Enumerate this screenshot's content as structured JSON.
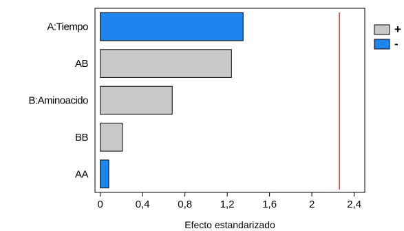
{
  "chart_data": {
    "type": "bar",
    "orientation": "horizontal",
    "title": "",
    "xlabel": "Efecto estandarizado",
    "ylabel": "",
    "categories": [
      "A:Tiempo",
      "AB",
      "B:Aminoacido",
      "BB",
      "AA"
    ],
    "values": [
      1.35,
      1.24,
      0.68,
      0.21,
      0.08
    ],
    "signs": [
      "-",
      "+",
      "+",
      "+",
      "-"
    ],
    "xlim": [
      -0.05,
      2.5
    ],
    "xticks": [
      0,
      0.4,
      0.8,
      1.2,
      1.6,
      2,
      2.4
    ],
    "xtick_labels": [
      "0",
      "0,4",
      "0,8",
      "1,2",
      "1,6",
      "2",
      "2,4"
    ],
    "reference_line": 2.26,
    "reference_color": "#cc0000",
    "legend": {
      "placement": "right",
      "entries": [
        {
          "label": "+",
          "color": "#c8c8c8"
        },
        {
          "label": "-",
          "color": "#1c86ee"
        }
      ]
    },
    "colors": {
      "positive": "#c8c8c8",
      "negative": "#1c86ee"
    }
  }
}
